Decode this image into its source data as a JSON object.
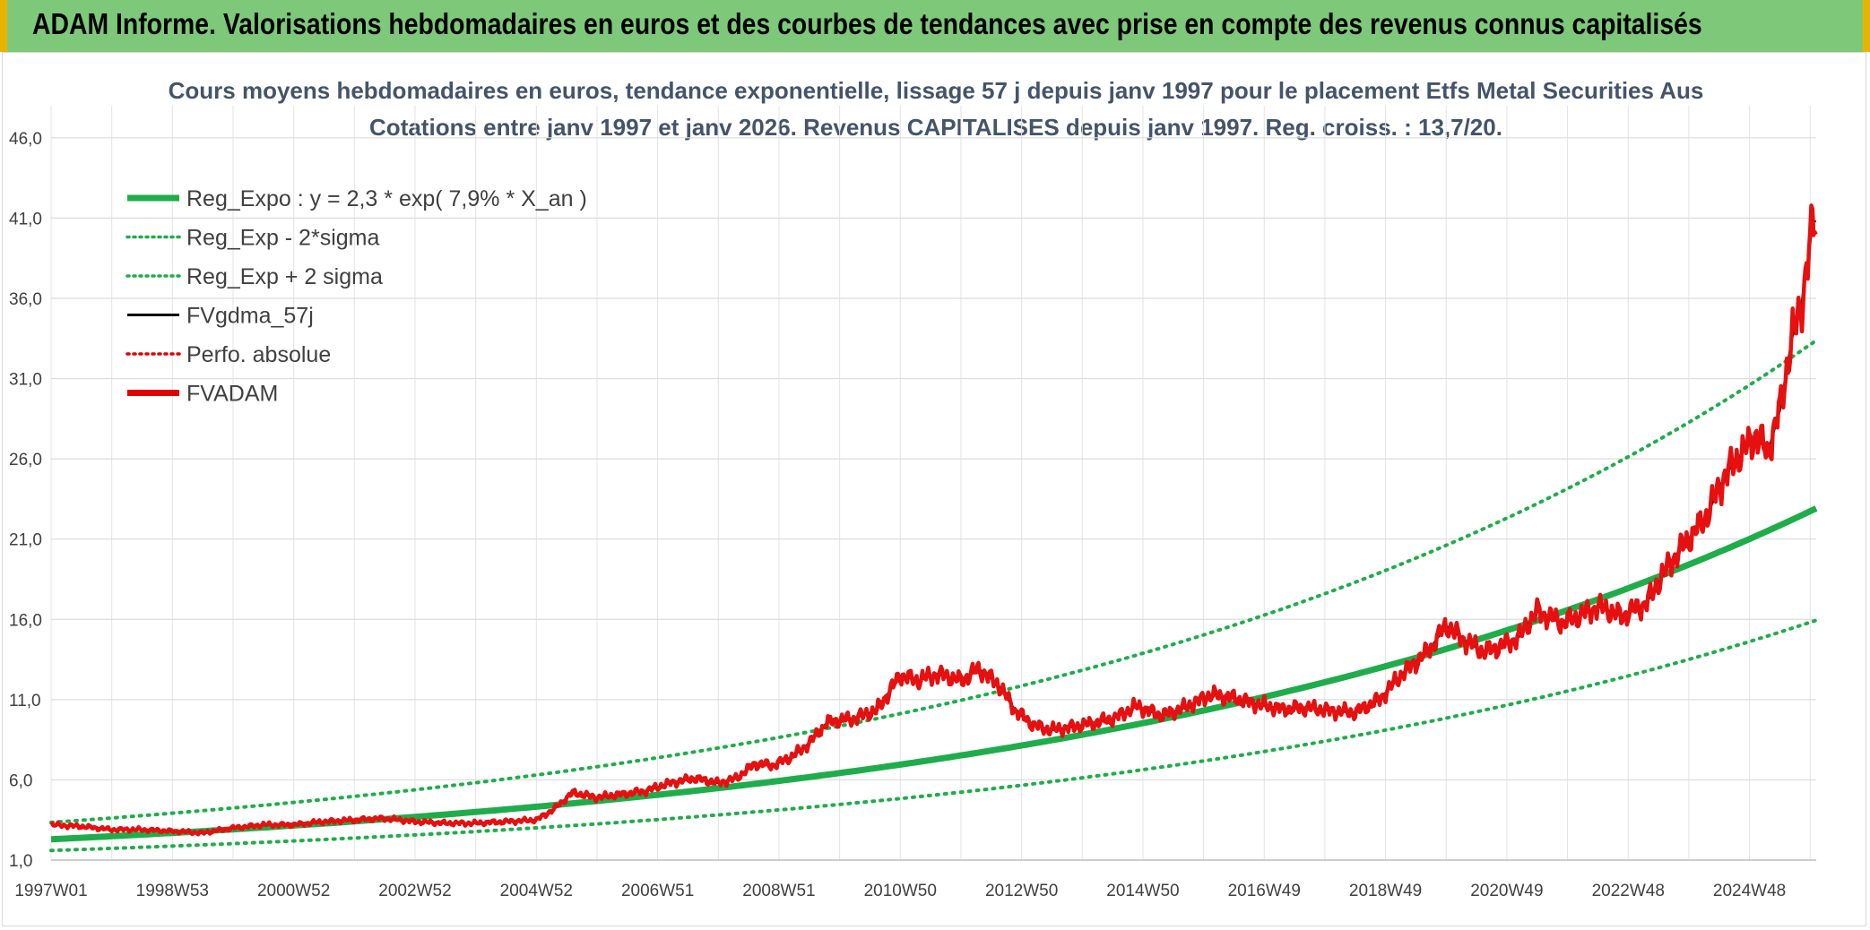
{
  "banner": {
    "title": "ADAM Informe. Valorisations hebdomadaires en euros et des courbes de tendances avec prise en compte des revenus connus capitalisés"
  },
  "chart_data": {
    "type": "line",
    "title_line1": "Cours moyens hebdomadaires en euros, tendance exponentielle, lissage 57 j depuis janv 1997 pour le placement Etfs Metal Securities Aus",
    "title_line2": "Cotations entre janv 1997 et janv 2026. Revenus CAPITALISES depuis janv 1997. Reg. croiss. : 13,7/20.",
    "xlabel": "",
    "ylabel": "",
    "xlim": [
      1997.0,
      2026.1
    ],
    "ylim": [
      1.0,
      48.0
    ],
    "x_tick_labels": [
      "1997W01",
      "1998W53",
      "2000W52",
      "2002W52",
      "2004W52",
      "2006W51",
      "2008W51",
      "2010W50",
      "2012W50",
      "2014W50",
      "2016W49",
      "2018W49",
      "2020W49",
      "2022W48",
      "2024W48"
    ],
    "x_tick_positions": [
      1997,
      1999,
      2001,
      2003,
      2005,
      2007,
      2009,
      2011,
      2013,
      2015,
      2017,
      2019,
      2021,
      2023,
      2025
    ],
    "y_tick_labels": [
      "1,0",
      "6,0",
      "11,0",
      "16,0",
      "21,0",
      "26,0",
      "31,0",
      "36,0",
      "41,0",
      "46,0"
    ],
    "y_tick_values": [
      1,
      6,
      11,
      16,
      21,
      26,
      31,
      36,
      41,
      46
    ],
    "legend": [
      {
        "name": "Reg_Expo : y = 2,3 * exp( 7,9% *  X_an )",
        "color": "#1fad4b",
        "style": "solid-thick"
      },
      {
        "name": "Reg_Exp - 2*sigma",
        "color": "#1fad4b",
        "style": "dotted"
      },
      {
        "name": "Reg_Exp + 2 sigma",
        "color": "#1fad4b",
        "style": "dotted"
      },
      {
        "name": "FVgdma_57j",
        "color": "#000000",
        "style": "solid"
      },
      {
        "name": "Perfo. absolue",
        "color": "#e00000",
        "style": "dotted"
      },
      {
        "name": "FVADAM",
        "color": "#e00000",
        "style": "solid-thick"
      }
    ],
    "series": [
      {
        "name": "Reg_Expo",
        "formula": {
          "a": 2.3,
          "b": 0.079,
          "x0": 1997
        }
      },
      {
        "name": "Reg_Exp - 2*sigma",
        "formula": {
          "a": 1.6,
          "b": 0.079,
          "x0": 1997
        }
      },
      {
        "name": "Reg_Exp + 2 sigma",
        "formula": {
          "a": 3.35,
          "b": 0.079,
          "x0": 1997
        }
      },
      {
        "name": "FVADAM",
        "x": [
          1997.0,
          1997.5,
          1998.0,
          1998.5,
          1999.0,
          1999.5,
          2000.0,
          2000.5,
          2001.0,
          2001.5,
          2002.0,
          2002.5,
          2003.0,
          2003.5,
          2004.0,
          2004.5,
          2005.0,
          2005.3,
          2005.6,
          2006.0,
          2006.4,
          2006.8,
          2007.2,
          2007.6,
          2008.0,
          2008.3,
          2008.6,
          2008.9,
          2009.2,
          2009.5,
          2009.8,
          2010.2,
          2010.6,
          2011.0,
          2011.3,
          2011.6,
          2012.0,
          2012.3,
          2012.6,
          2012.9,
          2013.2,
          2013.5,
          2014.0,
          2014.5,
          2014.9,
          2015.3,
          2015.7,
          2016.1,
          2016.5,
          2016.9,
          2017.3,
          2017.7,
          2018.1,
          2018.5,
          2018.9,
          2019.3,
          2019.7,
          2020.0,
          2020.3,
          2020.6,
          2020.9,
          2021.2,
          2021.5,
          2021.9,
          2022.2,
          2022.5,
          2022.9,
          2023.3,
          2023.7,
          2024.0,
          2024.3,
          2024.6,
          2024.9,
          2025.1,
          2025.3,
          2025.5,
          2025.7,
          2025.85,
          2025.95,
          2026.05
        ],
        "y": [
          3.2,
          3.1,
          2.9,
          2.9,
          2.8,
          2.7,
          3.0,
          3.2,
          3.2,
          3.4,
          3.5,
          3.6,
          3.4,
          3.3,
          3.3,
          3.4,
          3.5,
          4.2,
          5.2,
          4.9,
          5.1,
          5.3,
          5.8,
          6.1,
          5.8,
          6.1,
          7.0,
          6.9,
          7.4,
          8.3,
          9.6,
          9.8,
          10.3,
          12.5,
          12.2,
          12.6,
          12.2,
          12.9,
          12.0,
          10.3,
          9.4,
          9.1,
          9.4,
          9.8,
          10.6,
          10.0,
          10.5,
          11.3,
          11.1,
          10.7,
          10.4,
          10.5,
          10.3,
          10.2,
          11.0,
          12.7,
          14.0,
          15.6,
          14.7,
          14.0,
          14.3,
          14.9,
          16.5,
          15.8,
          16.2,
          16.8,
          16.2,
          17.0,
          19.6,
          21.0,
          22.5,
          25.0,
          26.5,
          27.5,
          26.4,
          29.0,
          33.5,
          35.5,
          38.0,
          40.8
        ]
      }
    ]
  }
}
